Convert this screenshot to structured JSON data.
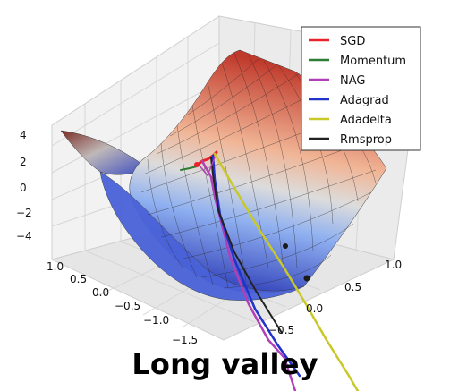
{
  "caption": "Long valley",
  "chart_data": {
    "type": "surface3d",
    "z_ticks": [
      "4",
      "2",
      "0",
      "−2",
      "−4"
    ],
    "y_ticks": [
      "1.0",
      "0.5",
      "0.0",
      "−0.5",
      "−1.0",
      "−1.5"
    ],
    "x_ticks": [
      "1.0",
      "0.5",
      "0.0",
      "−0.5"
    ],
    "grid": true,
    "legend_position": "top-right",
    "surface_colormap": [
      "#3b4cc0",
      "#c9d7f0",
      "#dddddd",
      "#f2cbb7",
      "#b40426"
    ],
    "legend": [
      {
        "name": "SGD",
        "color": "#e8242a"
      },
      {
        "name": "Momentum",
        "color": "#2e7d32"
      },
      {
        "name": "NAG",
        "color": "#b03fb8"
      },
      {
        "name": "Adagrad",
        "color": "#2233cc"
      },
      {
        "name": "Adadelta",
        "color": "#c8c82a"
      },
      {
        "name": "Rmsprop",
        "color": "#222222"
      }
    ]
  }
}
